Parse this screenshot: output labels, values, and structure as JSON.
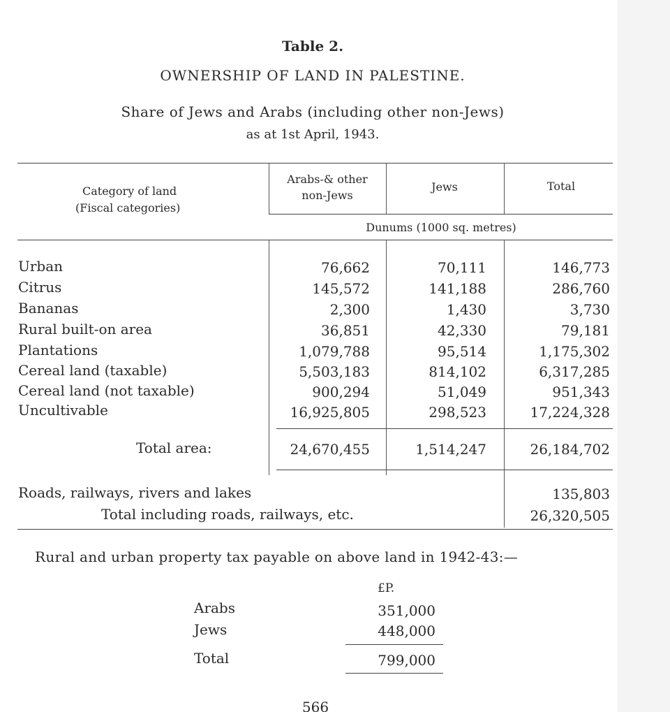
{
  "table_label": "Table 2.",
  "title": "OWNERSHIP OF LAND IN PALESTINE.",
  "subtitle_line1": "Share of Jews and Arabs (including other non-Jews)",
  "subtitle_line2": "as at 1st April, 1943.",
  "headers": {
    "category_line1": "Category of land",
    "category_line2": "(Fiscal categories)",
    "arabs_line1": "Arabs-& other",
    "arabs_line2": "non-Jews",
    "jews": "Jews",
    "total": "Total",
    "unit": "Dunums (1000 sq. metres)"
  },
  "rows": [
    {
      "category": "Urban",
      "arabs": "76,662",
      "jews": "70,111",
      "total": "146,773"
    },
    {
      "category": "Citrus",
      "arabs": "145,572",
      "jews": "141,188",
      "total": "286,760"
    },
    {
      "category": "Bananas",
      "arabs": "2,300",
      "jews": "1,430",
      "total": "3,730"
    },
    {
      "category": "Rural built-on area",
      "arabs": "36,851",
      "jews": "42,330",
      "total": "79,181"
    },
    {
      "category": "Plantations",
      "arabs": "1,079,788",
      "jews": "95,514",
      "total": "1,175,302"
    },
    {
      "category": "Cereal land (taxable)",
      "arabs": "5,503,183",
      "jews": "814,102",
      "total": "6,317,285"
    },
    {
      "category": "Cereal land (not taxable)",
      "arabs": "900,294",
      "jews": "51,049",
      "total": "951,343"
    },
    {
      "category": "Uncultivable",
      "arabs": "16,925,805",
      "jews": "298,523",
      "total": "17,224,328"
    }
  ],
  "total_area": {
    "label": "Total area:",
    "arabs": "24,670,455",
    "jews": "1,514,247",
    "total": "26,184,702"
  },
  "roads": {
    "label": "Roads, railways, rivers and lakes",
    "total": "135,803"
  },
  "grand_total": {
    "label": "Total including roads, railways, etc.",
    "total": "26,320,505"
  },
  "tax": {
    "intro": "Rural and urban property tax payable on above land in 1942-43:—",
    "currency": "£P.",
    "rows": [
      {
        "label": "Arabs",
        "value": "351,000"
      },
      {
        "label": "Jews",
        "value": "448,000"
      }
    ],
    "total_label": "Total",
    "total_value": "799,000"
  },
  "page_number": "566"
}
